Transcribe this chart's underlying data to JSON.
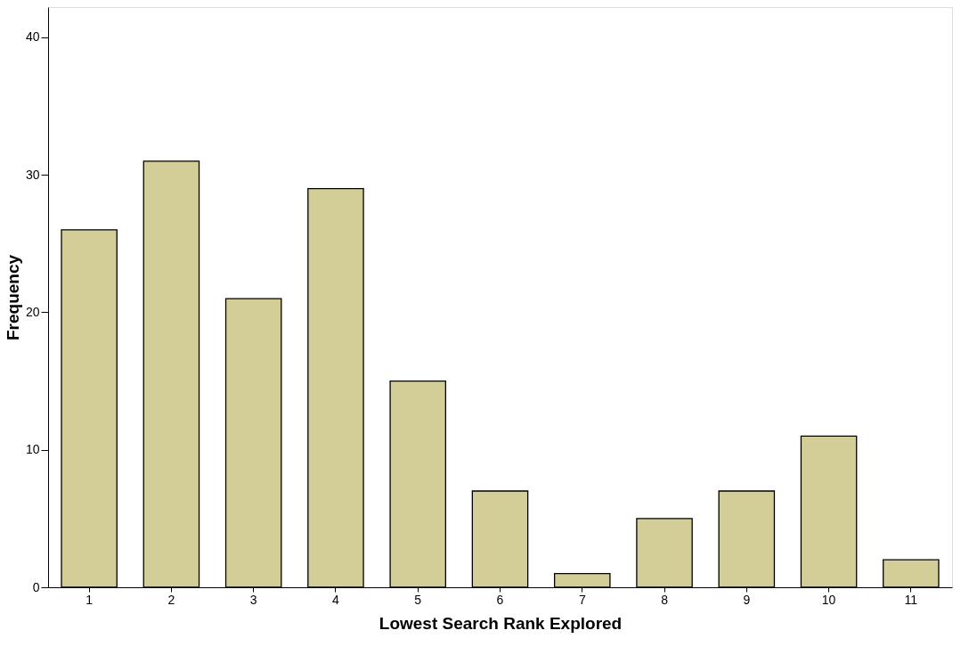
{
  "chart_data": {
    "type": "bar",
    "xlabel": "Lowest Search Rank Explored",
    "ylabel": "Frequency",
    "categories": [
      "1",
      "2",
      "3",
      "4",
      "5",
      "6",
      "7",
      "8",
      "9",
      "10",
      "11"
    ],
    "series": [
      {
        "color": "#d3ce97",
        "values": [
          26,
          31,
          21,
          29,
          15,
          7,
          1,
          5,
          7,
          11,
          2
        ]
      }
    ],
    "ylim": [
      0,
      42.2
    ],
    "yticks": [
      0,
      10,
      20,
      30,
      40
    ],
    "grid": false,
    "legend": false
  }
}
